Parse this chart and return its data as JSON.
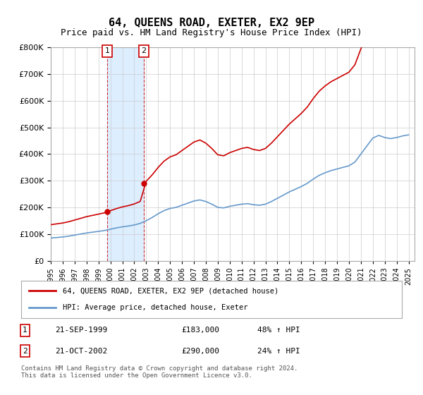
{
  "title": "64, QUEENS ROAD, EXETER, EX2 9EP",
  "subtitle": "Price paid vs. HM Land Registry's House Price Index (HPI)",
  "transactions": [
    {
      "id": 1,
      "date": 1999.72,
      "price": 183000,
      "label": "21-SEP-1999",
      "pct": "48% ↑ HPI"
    },
    {
      "id": 2,
      "date": 2002.8,
      "price": 290000,
      "label": "21-OCT-2002",
      "pct": "24% ↑ HPI"
    }
  ],
  "legend_line1": "64, QUEENS ROAD, EXETER, EX2 9EP (detached house)",
  "legend_line2": "HPI: Average price, detached house, Exeter",
  "footer": "Contains HM Land Registry data © Crown copyright and database right 2024.\nThis data is licensed under the Open Government Licence v3.0.",
  "ylim": [
    0,
    800000
  ],
  "yticks": [
    0,
    100000,
    200000,
    300000,
    400000,
    500000,
    600000,
    700000,
    800000
  ],
  "xlim_start": 1995.0,
  "xlim_end": 2025.5,
  "price_color": "#cc0000",
  "hpi_color": "#6699cc",
  "shade_color": "#ddeeff",
  "marker_box_color": "#cc0000",
  "background_color": "#ffffff",
  "grid_color": "#cccccc"
}
